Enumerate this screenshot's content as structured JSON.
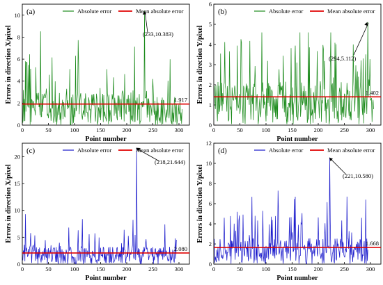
{
  "chart_data": [
    {
      "type": "line",
      "panel_label": "(a)",
      "xlabel": "Point number",
      "ylabel": "Errors in direction X/pixel",
      "xlim": [
        0,
        320
      ],
      "ylim": [
        0,
        11
      ],
      "x_ticks": [
        0,
        50,
        100,
        150,
        200,
        250,
        300
      ],
      "y_ticks": [
        0,
        2,
        4,
        6,
        8,
        10
      ],
      "legend_position": "top",
      "grid": false,
      "series": [
        {
          "name": "Absolute error",
          "color": "#1e8c1e",
          "n_points": 306,
          "range": [
            0,
            10.383
          ],
          "mean": 1.917,
          "values_note": "individual values not legible"
        },
        {
          "name": "Mean absolute error",
          "color": "#e00000",
          "value": 1.917
        }
      ],
      "mean_label": "1.917",
      "peak": {
        "x": 233,
        "y": 10.383,
        "label": "(233,10.383)"
      }
    },
    {
      "type": "line",
      "panel_label": "(b)",
      "xlabel": "Point number",
      "ylabel": "Errors in direction Y/pixel",
      "xlim": [
        0,
        320
      ],
      "ylim": [
        0,
        6
      ],
      "x_ticks": [
        0,
        50,
        100,
        150,
        200,
        250,
        300
      ],
      "y_ticks": [
        0,
        1,
        2,
        3,
        4,
        5,
        6
      ],
      "legend_position": "top",
      "grid": false,
      "series": [
        {
          "name": "Absolute error",
          "color": "#1e8c1e",
          "n_points": 306,
          "range": [
            0,
            5.112
          ],
          "mean": 1.402,
          "values_note": "individual values not legible"
        },
        {
          "name": "Mean absolute error",
          "color": "#e00000",
          "value": 1.402
        }
      ],
      "mean_label": "1.402",
      "peak": {
        "x": 294,
        "y": 5.112,
        "label": "(294,5.112)"
      }
    },
    {
      "type": "line",
      "panel_label": "(c)",
      "xlabel": "Point number",
      "ylabel": "Errors in direction X/pixel",
      "xlim": [
        0,
        320
      ],
      "ylim": [
        0,
        22.5
      ],
      "x_ticks": [
        0,
        50,
        100,
        150,
        200,
        250,
        300
      ],
      "y_ticks": [
        0,
        5,
        10,
        15,
        20
      ],
      "legend_position": "top",
      "grid": false,
      "series": [
        {
          "name": "Absolute error",
          "color": "#1c1ccc",
          "n_points": 295,
          "range": [
            0,
            21.644
          ],
          "mean": 2.08,
          "values_note": "individual values not legible"
        },
        {
          "name": "Mean absolute error",
          "color": "#e00000",
          "value": 2.08
        }
      ],
      "mean_label": "2.080",
      "peak": {
        "x": 218,
        "y": 21.644,
        "label": "(218,21.644)"
      }
    },
    {
      "type": "line",
      "panel_label": "(d)",
      "xlabel": "Point number",
      "ylabel": "Errors in direction Y/pixel",
      "xlim": [
        0,
        320
      ],
      "ylim": [
        0,
        12
      ],
      "x_ticks": [
        0,
        50,
        100,
        150,
        200,
        250,
        300
      ],
      "y_ticks": [
        0,
        2,
        4,
        6,
        8,
        10,
        12
      ],
      "legend_position": "top",
      "grid": false,
      "series": [
        {
          "name": "Absolute error",
          "color": "#1c1ccc",
          "n_points": 295,
          "range": [
            0,
            10.58
          ],
          "mean": 1.668,
          "values_note": "individual values not legible"
        },
        {
          "name": "Mean absolute error",
          "color": "#e00000",
          "value": 1.668
        }
      ],
      "mean_label": "1.668",
      "peak": {
        "x": 221,
        "y": 10.58,
        "label": "(221,10.580)"
      }
    }
  ]
}
